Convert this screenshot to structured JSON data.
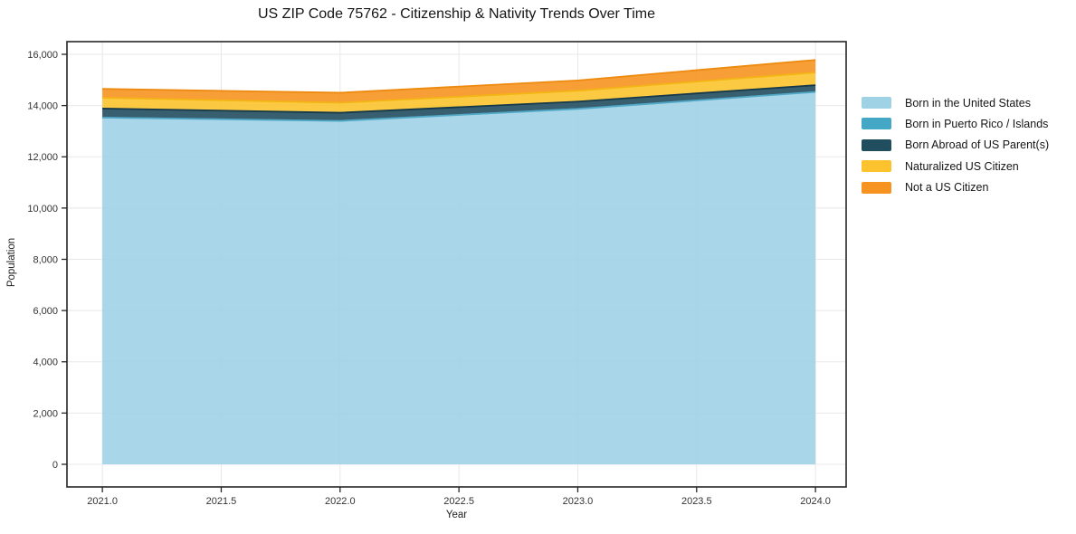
{
  "chart_data": {
    "type": "area",
    "stacked": true,
    "title": "US ZIP Code 75762 - Citizenship & Nativity Trends Over Time",
    "xlabel": "Year",
    "ylabel": "Population",
    "x": [
      2021,
      2022,
      2023,
      2024
    ],
    "series": [
      {
        "name": "Born in the United States",
        "color": "#a0d2e6",
        "edge": "#74bcd9",
        "values": [
          13530,
          13400,
          13870,
          14530
        ]
      },
      {
        "name": "Born in Puerto Rico / Islands",
        "color": "#44a7c6",
        "edge": "#2e93b5",
        "values": [
          0,
          0,
          0,
          0
        ]
      },
      {
        "name": "Born Abroad of US Parent(s)",
        "color": "#214e5f",
        "edge": "#16394a",
        "values": [
          355,
          320,
          285,
          265
        ]
      },
      {
        "name": "Naturalized US Citizen",
        "color": "#fcc32e",
        "edge": "#f3b414",
        "values": [
          420,
          390,
          425,
          495
        ]
      },
      {
        "name": "Not a US Citizen",
        "color": "#f79421",
        "edge": "#ed8a0f",
        "values": [
          345,
          390,
          400,
          490
        ]
      }
    ],
    "totals": [
      14650,
      14500,
      14980,
      15780
    ],
    "xlim": [
      2020.851,
      2024.129
    ],
    "ylim": [
      -883,
      16494
    ],
    "xticks": {
      "values": [
        2021.0,
        2021.5,
        2022.0,
        2022.5,
        2023.0,
        2023.5,
        2024.0
      ],
      "labels": [
        "2021.0",
        "2021.5",
        "2022.0",
        "2022.5",
        "2023.0",
        "2023.5",
        "2024.0"
      ]
    },
    "yticks": {
      "values": [
        0,
        2000,
        4000,
        6000,
        8000,
        10000,
        12000,
        14000,
        16000
      ],
      "labels": [
        "0",
        "2,000",
        "4,000",
        "6,000",
        "8,000",
        "10,000",
        "12,000",
        "14,000",
        "16,000"
      ]
    },
    "grid": true,
    "grid_color": "#e8e8e8",
    "spine_color": "#262626",
    "tick_label_color": "#333333",
    "legend_position": "right",
    "fill_opacity": 0.9
  }
}
